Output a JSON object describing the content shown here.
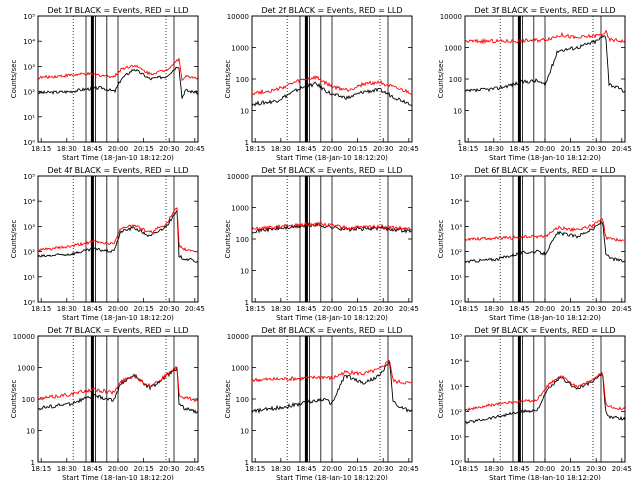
{
  "figure": {
    "start_time_label": "Start Time (18-Jan-10 18:12:20)",
    "ylabel": "Counts/sec",
    "time_ticks": [
      "18:15",
      "18:30",
      "18:45",
      "20:00",
      "20:15",
      "20:30",
      "20:45"
    ]
  },
  "colors": {
    "events": "#000000",
    "lld": "#ff0000"
  },
  "chart_data": [
    {
      "type": "line",
      "title": "Det 1f BLACK = Events, RED = LLD",
      "xlabel": "Start Time (18-Jan-10 18:12:20)",
      "ylabel": "Counts/sec",
      "yscale": "log",
      "ylim_exp": [
        0,
        5
      ],
      "y_tick_labels": [
        "10⁰",
        "10¹",
        "10²",
        "10³",
        "10⁴",
        "10⁵"
      ],
      "x_tick_labels": [
        "18:15",
        "18:30",
        "18:45",
        "20:00",
        "20:15",
        "20:30",
        "20:45"
      ],
      "series": [
        {
          "name": "Events",
          "color": "#000000",
          "x": [
            0,
            0.2,
            0.3,
            0.4,
            0.48,
            0.52,
            0.6,
            0.7,
            0.8,
            0.88,
            0.9,
            0.92,
            1.0
          ],
          "y_exp": [
            1.95,
            2.0,
            2.1,
            2.15,
            2.0,
            2.5,
            2.9,
            2.5,
            2.6,
            3.05,
            1.75,
            2.05,
            1.95
          ]
        },
        {
          "name": "LLD",
          "color": "#ff0000",
          "x": [
            0,
            0.3,
            0.48,
            0.52,
            0.6,
            0.7,
            0.8,
            0.88,
            0.9,
            0.92,
            1.0
          ],
          "y_exp": [
            2.55,
            2.7,
            2.6,
            2.9,
            3.05,
            2.7,
            2.85,
            3.3,
            2.5,
            2.6,
            2.55
          ]
        }
      ]
    },
    {
      "type": "line",
      "title": "Det 2f BLACK = Events, RED = LLD",
      "xlabel": "Start Time (18-Jan-10 18:12:20)",
      "ylabel": "Counts/sec",
      "yscale": "log",
      "ylim_exp": [
        0,
        4
      ],
      "y_tick_labels": [
        "1",
        "10",
        "100",
        "1000",
        "10000"
      ],
      "x_tick_labels": [
        "18:15",
        "18:30",
        "18:45",
        "20:00",
        "20:15",
        "20:30",
        "20:45"
      ],
      "series": [
        {
          "name": "Events",
          "color": "#000000",
          "x": [
            0,
            0.15,
            0.3,
            0.4,
            0.5,
            0.6,
            0.7,
            0.8,
            0.9,
            1.0
          ],
          "y_exp": [
            1.2,
            1.3,
            1.7,
            1.85,
            1.5,
            1.4,
            1.6,
            1.65,
            1.4,
            1.2
          ]
        },
        {
          "name": "LLD",
          "color": "#ff0000",
          "x": [
            0,
            0.15,
            0.3,
            0.4,
            0.5,
            0.6,
            0.7,
            0.8,
            0.9,
            1.0
          ],
          "y_exp": [
            1.55,
            1.65,
            1.95,
            2.05,
            1.75,
            1.65,
            1.85,
            1.9,
            1.7,
            1.55
          ]
        }
      ]
    },
    {
      "type": "line",
      "title": "Det 3f BLACK = Events, RED = LLD",
      "xlabel": "Start Time (18-Jan-10 18:12:20)",
      "ylabel": "Counts/sec",
      "yscale": "log",
      "ylim_exp": [
        0,
        4
      ],
      "y_tick_labels": [
        "1",
        "10",
        "100",
        "1000",
        "10000"
      ],
      "x_tick_labels": [
        "18:15",
        "18:30",
        "18:45",
        "20:00",
        "20:15",
        "20:30",
        "20:45"
      ],
      "series": [
        {
          "name": "Events",
          "color": "#000000",
          "x": [
            0,
            0.2,
            0.35,
            0.45,
            0.5,
            0.58,
            0.7,
            0.82,
            0.88,
            0.9,
            0.92,
            1.0
          ],
          "y_exp": [
            1.6,
            1.7,
            1.9,
            1.95,
            1.8,
            2.9,
            3.0,
            3.2,
            3.4,
            1.85,
            1.8,
            1.6
          ]
        },
        {
          "name": "LLD",
          "color": "#ff0000",
          "x": [
            0,
            0.3,
            0.5,
            0.6,
            0.7,
            0.85,
            0.88,
            0.9,
            1.0
          ],
          "y_exp": [
            3.2,
            3.2,
            3.25,
            3.4,
            3.3,
            3.4,
            3.5,
            3.25,
            3.2
          ]
        }
      ]
    },
    {
      "type": "line",
      "title": "Det 4f BLACK = Events, RED = LLD",
      "xlabel": "Start Time (18-Jan-10 18:12:20)",
      "ylabel": "Counts/sec",
      "yscale": "log",
      "ylim_exp": [
        0,
        5
      ],
      "y_tick_labels": [
        "10⁰",
        "10¹",
        "10²",
        "10³",
        "10⁴",
        "10⁵"
      ],
      "x_tick_labels": [
        "18:15",
        "18:30",
        "18:45",
        "20:00",
        "20:15",
        "20:30",
        "20:45"
      ],
      "series": [
        {
          "name": "Events",
          "color": "#000000",
          "x": [
            0,
            0.2,
            0.35,
            0.47,
            0.52,
            0.6,
            0.7,
            0.8,
            0.87,
            0.88,
            0.9,
            1.0
          ],
          "y_exp": [
            1.8,
            1.9,
            2.1,
            2.0,
            2.8,
            2.95,
            2.6,
            3.0,
            3.6,
            1.85,
            1.75,
            1.6
          ]
        },
        {
          "name": "LLD",
          "color": "#ff0000",
          "x": [
            0,
            0.2,
            0.35,
            0.47,
            0.52,
            0.6,
            0.7,
            0.8,
            0.87,
            0.88,
            0.9,
            1.0
          ],
          "y_exp": [
            2.05,
            2.2,
            2.4,
            2.3,
            2.95,
            3.05,
            2.75,
            3.1,
            3.75,
            2.3,
            2.1,
            2.0
          ]
        }
      ]
    },
    {
      "type": "line",
      "title": "Det 5f BLACK = Events, RED = LLD",
      "xlabel": "Start Time (18-Jan-10 18:12:20)",
      "ylabel": "Counts/sec",
      "yscale": "log",
      "ylim_exp": [
        0,
        4
      ],
      "y_tick_labels": [
        "1",
        "10",
        "100",
        "1000",
        "10000"
      ],
      "x_tick_labels": [
        "18:15",
        "18:30",
        "18:45",
        "20:00",
        "20:15",
        "20:30",
        "20:45"
      ],
      "series": [
        {
          "name": "Events",
          "color": "#000000",
          "x": [
            0,
            0.2,
            0.4,
            0.6,
            0.8,
            1.0
          ],
          "y_exp": [
            2.25,
            2.35,
            2.45,
            2.3,
            2.35,
            2.25
          ]
        },
        {
          "name": "LLD",
          "color": "#ff0000",
          "x": [
            0,
            0.2,
            0.4,
            0.6,
            0.8,
            1.0
          ],
          "y_exp": [
            2.3,
            2.4,
            2.5,
            2.35,
            2.4,
            2.3
          ]
        }
      ]
    },
    {
      "type": "line",
      "title": "Det 6f BLACK = Events, RED = LLD",
      "xlabel": "Start Time (18-Jan-10 18:12:20)",
      "ylabel": "Counts/sec",
      "yscale": "log",
      "ylim_exp": [
        0,
        5
      ],
      "y_tick_labels": [
        "10⁰",
        "10¹",
        "10²",
        "10³",
        "10⁴",
        "10⁵"
      ],
      "x_tick_labels": [
        "18:15",
        "18:30",
        "18:45",
        "20:00",
        "20:15",
        "20:30",
        "20:45"
      ],
      "series": [
        {
          "name": "Events",
          "color": "#000000",
          "x": [
            0,
            0.2,
            0.35,
            0.45,
            0.5,
            0.58,
            0.7,
            0.8,
            0.86,
            0.88,
            0.9,
            1.0
          ],
          "y_exp": [
            1.6,
            1.7,
            1.95,
            2.0,
            1.9,
            2.75,
            2.6,
            2.9,
            3.2,
            1.95,
            1.75,
            1.6
          ]
        },
        {
          "name": "LLD",
          "color": "#ff0000",
          "x": [
            0,
            0.3,
            0.45,
            0.5,
            0.58,
            0.7,
            0.8,
            0.86,
            0.88,
            0.9,
            1.0
          ],
          "y_exp": [
            2.5,
            2.55,
            2.6,
            2.6,
            2.95,
            2.85,
            3.05,
            3.3,
            2.55,
            2.5,
            2.45
          ]
        }
      ]
    },
    {
      "type": "line",
      "title": "Det 7f BLACK = Events, RED = LLD",
      "xlabel": "Start Time (18-Jan-10 18:12:20)",
      "ylabel": "Counts/sec",
      "yscale": "log",
      "ylim_exp": [
        0,
        4
      ],
      "y_tick_labels": [
        "1",
        "10",
        "100",
        "1000",
        "10000"
      ],
      "x_tick_labels": [
        "18:15",
        "18:30",
        "18:45",
        "20:00",
        "20:15",
        "20:30",
        "20:45"
      ],
      "series": [
        {
          "name": "Events",
          "color": "#000000",
          "x": [
            0,
            0.2,
            0.35,
            0.47,
            0.52,
            0.6,
            0.7,
            0.8,
            0.87,
            0.88,
            0.9,
            1.0
          ],
          "y_exp": [
            1.7,
            1.85,
            2.1,
            1.95,
            2.5,
            2.75,
            2.35,
            2.7,
            3.0,
            1.9,
            1.75,
            1.55
          ]
        },
        {
          "name": "LLD",
          "color": "#ff0000",
          "x": [
            0,
            0.2,
            0.35,
            0.47,
            0.52,
            0.6,
            0.7,
            0.8,
            0.87,
            0.88,
            0.9,
            1.0
          ],
          "y_exp": [
            2.0,
            2.15,
            2.3,
            2.2,
            2.55,
            2.75,
            2.4,
            2.75,
            3.0,
            2.15,
            2.05,
            1.95
          ]
        }
      ]
    },
    {
      "type": "line",
      "title": "Det 8f BLACK = Events, RED = LLD",
      "xlabel": "Start Time (18-Jan-10 18:12:20)",
      "ylabel": "Counts/sec",
      "yscale": "log",
      "ylim_exp": [
        0,
        4
      ],
      "y_tick_labels": [
        "1",
        "10",
        "100",
        "1000",
        "10000"
      ],
      "x_tick_labels": [
        "18:15",
        "18:30",
        "18:45",
        "20:00",
        "20:15",
        "20:30",
        "20:45"
      ],
      "series": [
        {
          "name": "Events",
          "color": "#000000",
          "x": [
            0,
            0.2,
            0.35,
            0.45,
            0.5,
            0.58,
            0.7,
            0.8,
            0.86,
            0.88,
            0.9,
            1.0
          ],
          "y_exp": [
            1.6,
            1.75,
            1.9,
            2.0,
            1.85,
            2.75,
            2.5,
            2.75,
            3.2,
            2.0,
            1.8,
            1.6
          ]
        },
        {
          "name": "LLD",
          "color": "#ff0000",
          "x": [
            0,
            0.3,
            0.45,
            0.5,
            0.58,
            0.7,
            0.8,
            0.86,
            0.88,
            0.9,
            1.0
          ],
          "y_exp": [
            2.6,
            2.65,
            2.7,
            2.65,
            2.85,
            2.8,
            2.95,
            3.25,
            2.6,
            2.55,
            2.5
          ]
        }
      ]
    },
    {
      "type": "line",
      "title": "Det 9f BLACK = Events, RED = LLD",
      "xlabel": "Start Time (18-Jan-10 18:12:20)",
      "ylabel": "Counts/sec",
      "yscale": "log",
      "ylim_exp": [
        0,
        5
      ],
      "y_tick_labels": [
        "10⁰",
        "10¹",
        "10²",
        "10³",
        "10⁴",
        "10⁵"
      ],
      "x_tick_labels": [
        "18:15",
        "18:30",
        "18:45",
        "20:00",
        "20:15",
        "20:30",
        "20:45"
      ],
      "series": [
        {
          "name": "Events",
          "color": "#000000",
          "x": [
            0,
            0.2,
            0.35,
            0.45,
            0.52,
            0.6,
            0.7,
            0.8,
            0.86,
            0.88,
            0.9,
            1.0
          ],
          "y_exp": [
            1.55,
            1.8,
            2.0,
            2.05,
            2.9,
            3.35,
            2.9,
            3.2,
            3.5,
            1.95,
            1.8,
            1.7
          ]
        },
        {
          "name": "LLD",
          "color": "#ff0000",
          "x": [
            0,
            0.2,
            0.35,
            0.45,
            0.52,
            0.6,
            0.7,
            0.8,
            0.86,
            0.88,
            0.9,
            1.0
          ],
          "y_exp": [
            2.05,
            2.3,
            2.4,
            2.45,
            3.05,
            3.4,
            3.0,
            3.25,
            3.55,
            2.3,
            2.2,
            2.1
          ]
        }
      ]
    }
  ]
}
